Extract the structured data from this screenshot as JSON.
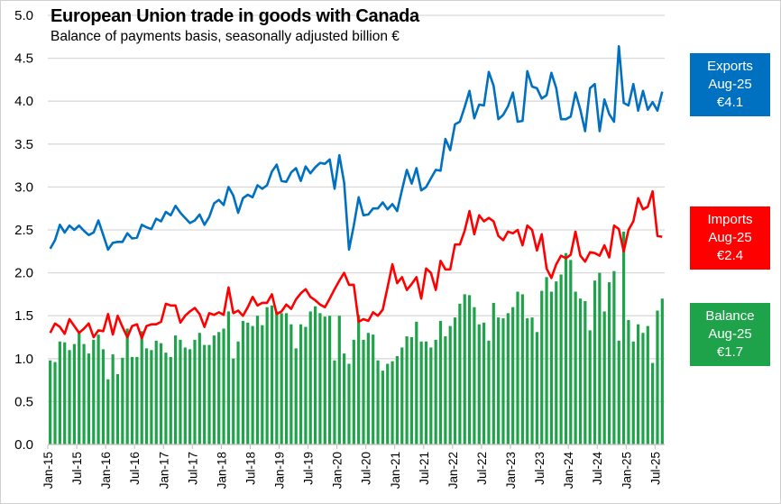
{
  "chart_data": {
    "type": "bar+line",
    "title": "European Union trade in goods with Canada",
    "subtitle": "Balance of payments basis, seasonally adjusted billion €",
    "ylim": [
      0,
      5
    ],
    "yticks": [
      "0.0",
      "0.5",
      "1.0",
      "1.5",
      "2.0",
      "2.5",
      "3.0",
      "3.5",
      "4.0",
      "4.5",
      "5.0"
    ],
    "xtick_labels": [
      "Jan-15",
      "Jul-15",
      "Jan-16",
      "Jul-16",
      "Jan-17",
      "Jul-17",
      "Jan-18",
      "Jul-18",
      "Jan-19",
      "Jul-19",
      "Jan-20",
      "Jul-20",
      "Jan-21",
      "Jul-21",
      "Jan-22",
      "Jul-22",
      "Jan-23",
      "Jul-23",
      "Jan-24",
      "Jul-24",
      "Jan-25",
      "Jul-25"
    ],
    "x_start": "Jan-15",
    "x_end": "Aug-25",
    "grid": true,
    "series": [
      {
        "name": "Exports",
        "type": "line",
        "color": "#0070C0",
        "values": [
          2.28,
          2.38,
          2.56,
          2.47,
          2.55,
          2.5,
          2.55,
          2.49,
          2.44,
          2.47,
          2.61,
          2.44,
          2.27,
          2.35,
          2.36,
          2.36,
          2.46,
          2.4,
          2.41,
          2.56,
          2.53,
          2.51,
          2.63,
          2.6,
          2.71,
          2.67,
          2.78,
          2.7,
          2.64,
          2.58,
          2.61,
          2.68,
          2.56,
          2.65,
          2.81,
          2.85,
          2.79,
          3.0,
          2.9,
          2.7,
          2.87,
          2.91,
          2.88,
          3.02,
          2.98,
          3.02,
          3.18,
          3.26,
          3.07,
          3.06,
          3.17,
          3.22,
          3.07,
          3.24,
          3.16,
          3.23,
          3.28,
          3.27,
          3.32,
          2.98,
          3.37,
          3.05,
          2.27,
          2.55,
          2.88,
          2.67,
          2.68,
          2.75,
          2.75,
          2.82,
          2.74,
          2.8,
          2.72,
          2.97,
          3.2,
          3.04,
          3.22,
          2.96,
          3.0,
          3.1,
          3.2,
          3.19,
          3.56,
          3.43,
          3.73,
          3.76,
          3.93,
          4.12,
          3.8,
          3.96,
          3.95,
          4.34,
          4.18,
          3.79,
          3.84,
          3.94,
          4.1,
          3.76,
          3.77,
          4.35,
          4.17,
          4.15,
          4.03,
          4.07,
          4.33,
          4.15,
          3.79,
          3.79,
          3.82,
          4.1,
          3.9,
          3.65,
          4.15,
          4.2,
          3.65,
          4.02,
          3.85,
          3.76,
          4.64,
          3.98,
          3.95,
          4.2,
          3.89,
          4.12,
          3.9,
          3.99,
          3.89,
          4.11
        ]
      },
      {
        "name": "Imports",
        "type": "line",
        "color": "#FF0000",
        "values": [
          1.3,
          1.41,
          1.37,
          1.29,
          1.46,
          1.38,
          1.3,
          1.35,
          1.41,
          1.25,
          1.33,
          1.32,
          1.52,
          1.28,
          1.5,
          1.37,
          1.25,
          1.38,
          1.4,
          1.24,
          1.38,
          1.4,
          1.4,
          1.43,
          1.64,
          1.62,
          1.62,
          1.42,
          1.5,
          1.55,
          1.59,
          1.52,
          1.37,
          1.53,
          1.51,
          1.54,
          1.51,
          1.83,
          1.53,
          1.56,
          1.5,
          1.6,
          1.72,
          1.62,
          1.65,
          1.65,
          1.75,
          1.52,
          1.55,
          1.63,
          1.58,
          1.69,
          1.76,
          1.81,
          1.72,
          1.68,
          1.63,
          1.6,
          1.7,
          1.81,
          1.91,
          2.0,
          1.86,
          1.86,
          1.43,
          1.46,
          1.44,
          1.54,
          1.5,
          1.57,
          1.83,
          2.1,
          1.88,
          1.95,
          1.8,
          1.87,
          1.95,
          1.7,
          2.05,
          2.0,
          1.8,
          2.14,
          2.04,
          2.04,
          2.33,
          2.33,
          2.49,
          2.72,
          2.45,
          2.67,
          2.6,
          2.64,
          2.6,
          2.43,
          2.38,
          2.48,
          2.46,
          2.5,
          2.32,
          2.55,
          2.5,
          2.26,
          2.45,
          2.05,
          1.94,
          2.1,
          2.2,
          2.17,
          2.21,
          2.48,
          2.2,
          2.13,
          2.24,
          2.23,
          2.2,
          2.32,
          2.18,
          2.55,
          2.51,
          2.25,
          2.5,
          2.6,
          2.87,
          2.74,
          2.77,
          2.95,
          2.43,
          2.42
        ]
      },
      {
        "name": "Balance",
        "type": "bar",
        "color": "#1FA34A",
        "values": [
          0.98,
          0.96,
          1.2,
          1.19,
          1.1,
          1.17,
          1.3,
          1.17,
          1.06,
          1.22,
          1.28,
          1.11,
          0.76,
          1.05,
          0.82,
          1.01,
          1.35,
          1.02,
          1.02,
          1.32,
          1.12,
          1.1,
          1.21,
          1.18,
          1.07,
          1.02,
          1.27,
          1.22,
          1.13,
          1.11,
          1.22,
          1.3,
          1.16,
          1.16,
          1.27,
          1.31,
          1.35,
          1.55,
          1.0,
          1.2,
          1.44,
          1.42,
          1.38,
          1.5,
          1.39,
          1.6,
          1.62,
          1.55,
          1.53,
          1.53,
          1.4,
          1.12,
          1.4,
          1.37,
          1.55,
          1.61,
          1.53,
          1.49,
          1.5,
          0.98,
          1.5,
          1.06,
          0.94,
          1.22,
          1.51,
          1.22,
          1.3,
          1.28,
          0.98,
          0.86,
          0.94,
          0.97,
          1.03,
          1.13,
          1.26,
          1.25,
          1.43,
          1.2,
          1.2,
          1.13,
          1.22,
          1.44,
          1.26,
          1.38,
          1.48,
          1.64,
          1.75,
          1.74,
          1.6,
          1.4,
          1.42,
          1.21,
          1.65,
          1.48,
          1.47,
          1.53,
          1.6,
          1.78,
          1.75,
          1.47,
          1.48,
          1.31,
          1.79,
          1.95,
          1.78,
          1.9,
          1.98,
          2.23,
          2.15,
          1.78,
          1.7,
          1.67,
          1.33,
          1.91,
          2.0,
          1.55,
          1.89,
          2.02,
          1.21,
          2.48,
          1.45,
          1.2,
          1.4,
          1.3,
          1.38,
          0.95,
          1.56,
          1.7
        ]
      }
    ],
    "legend": [
      {
        "name": "Exports",
        "period": "Aug-25",
        "value": "€4.1",
        "color": "#0070C0"
      },
      {
        "name": "Imports",
        "period": "Aug-25",
        "value": "€2.4",
        "color": "#FF0000"
      },
      {
        "name": "Balance",
        "period": "Aug-25",
        "value": "€1.7",
        "color": "#1FA34A"
      }
    ],
    "legend_placement": "right"
  }
}
